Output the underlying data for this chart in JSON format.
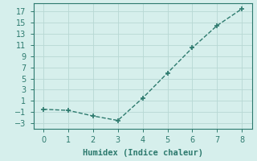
{
  "x": [
    0,
    1,
    2,
    3,
    4,
    5,
    6,
    7,
    8
  ],
  "y": [
    -0.5,
    -0.7,
    -1.7,
    -2.5,
    1.5,
    6.0,
    10.5,
    14.5,
    17.5
  ],
  "line_color": "#2d7a6e",
  "marker": "+",
  "marker_size": 5,
  "marker_linewidth": 1.2,
  "bg_color": "#d6efec",
  "grid_color": "#b8d8d4",
  "xlabel": "Humidex (Indice chaleur)",
  "xlabel_fontsize": 7.5,
  "yticks": [
    -3,
    -1,
    1,
    3,
    5,
    7,
    9,
    11,
    13,
    15,
    17
  ],
  "xticks": [
    0,
    1,
    2,
    3,
    4,
    5,
    6,
    7,
    8
  ],
  "xlim": [
    -0.4,
    8.4
  ],
  "ylim": [
    -4.0,
    18.5
  ],
  "tick_fontsize": 7,
  "linewidth": 1.0,
  "linestyle": "--"
}
